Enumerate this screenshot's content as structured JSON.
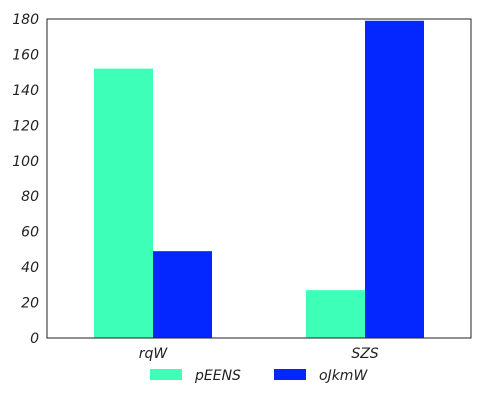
{
  "chart_data": {
    "type": "bar",
    "title": "",
    "xlabel": "",
    "ylabel": "",
    "categories": [
      "rqW",
      "SZS"
    ],
    "series": [
      {
        "name": "pEENS",
        "color": "#3dffb8",
        "values": [
          152,
          27
        ]
      },
      {
        "name": "oJkmW",
        "color": "#0527ff",
        "values": [
          49,
          179
        ]
      }
    ],
    "ylim": [
      0,
      180
    ],
    "yticks": [
      0,
      20,
      40,
      60,
      80,
      100,
      120,
      140,
      160,
      180
    ],
    "grid": false,
    "legend_position": "bottom-center"
  }
}
